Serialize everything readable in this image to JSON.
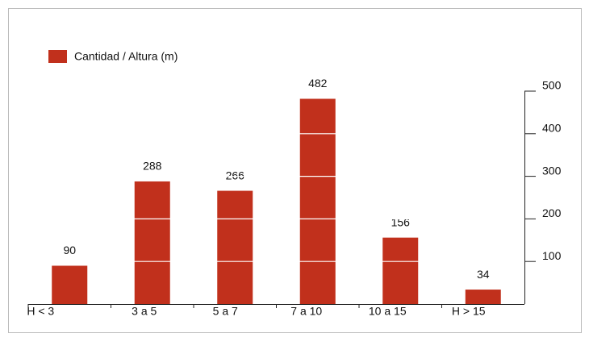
{
  "chart_data": {
    "type": "bar",
    "categories": [
      "H < 3",
      "3 a 5",
      "5 a 7",
      "7 a 10",
      "10 a 15",
      "H > 15"
    ],
    "series": [
      {
        "name": "Cantidad / Altura (m)",
        "color": "#c1301c",
        "values": [
          90,
          288,
          266,
          482,
          156,
          34
        ]
      }
    ],
    "ylim": [
      0,
      500
    ],
    "yticks": [
      100,
      200,
      300,
      400,
      500
    ],
    "grid": true
  }
}
